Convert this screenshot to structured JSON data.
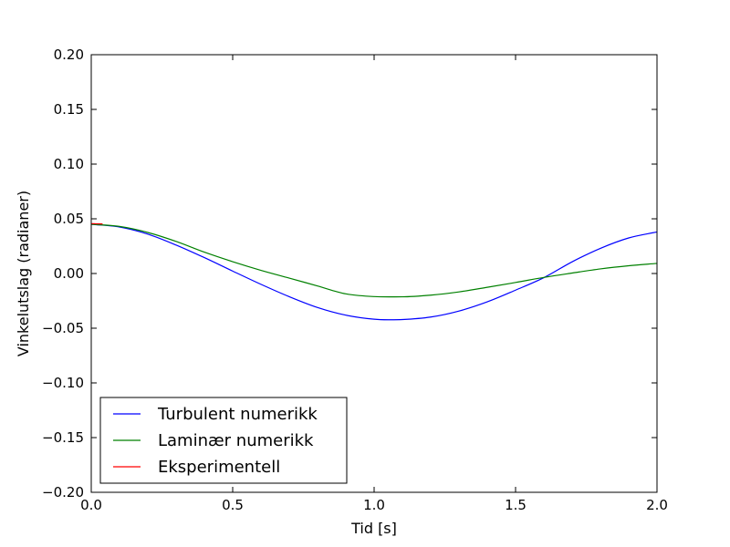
{
  "chart_data": {
    "type": "line",
    "title": "",
    "xlabel": "Tid [s]",
    "ylabel": "Vinkelutslag (radianer)",
    "xlim": [
      0,
      2
    ],
    "ylim": [
      -0.2,
      0.2
    ],
    "grid": false,
    "legend_position": "lower-left",
    "x_ticks": [
      "0.0",
      "0.5",
      "1.0",
      "1.5",
      "2.0"
    ],
    "y_ticks": [
      "0.20",
      "0.15",
      "0.10",
      "0.05",
      "0.00",
      "−0.05",
      "−0.10",
      "−0.15",
      "−0.20"
    ],
    "series": [
      {
        "name": "Turbulent numerikk",
        "color": "#0000ff",
        "x": [
          0,
          0.1,
          0.2,
          0.3,
          0.4,
          0.5,
          0.6,
          0.7,
          0.8,
          0.9,
          1.0,
          1.05,
          1.1,
          1.2,
          1.3,
          1.4,
          1.5,
          1.6,
          1.7,
          1.8,
          1.9,
          2.0
        ],
        "y": [
          0.045,
          0.0425,
          0.036,
          0.026,
          0.0145,
          0.0022,
          -0.0099,
          -0.0212,
          -0.0311,
          -0.0381,
          -0.0418,
          -0.0423,
          -0.0421,
          -0.0398,
          -0.0343,
          -0.0259,
          -0.0152,
          -0.0038,
          0.0107,
          0.023,
          0.0325,
          0.038
        ]
      },
      {
        "name": "Laminær numerikk",
        "color": "#008000",
        "x": [
          0,
          0.1,
          0.2,
          0.3,
          0.4,
          0.5,
          0.6,
          0.7,
          0.8,
          0.9,
          1.0,
          1.1,
          1.2,
          1.3,
          1.4,
          1.5,
          1.6,
          1.7,
          1.8,
          1.9,
          2.0
        ],
        "y": [
          0.045,
          0.043,
          0.0375,
          0.0293,
          0.0195,
          0.0108,
          0.0029,
          -0.0042,
          -0.0114,
          -0.0186,
          -0.0211,
          -0.0213,
          -0.0198,
          -0.0168,
          -0.0126,
          -0.0082,
          -0.0036,
          0.0004,
          0.0042,
          0.0071,
          0.0092
        ]
      },
      {
        "name": "Eksperimentell",
        "color": "#ff0000",
        "x": [
          0,
          0.01,
          0.02,
          0.03,
          0.04
        ],
        "y": [
          0.0455,
          0.0455,
          0.0454,
          0.0454,
          0.0453
        ]
      }
    ]
  }
}
